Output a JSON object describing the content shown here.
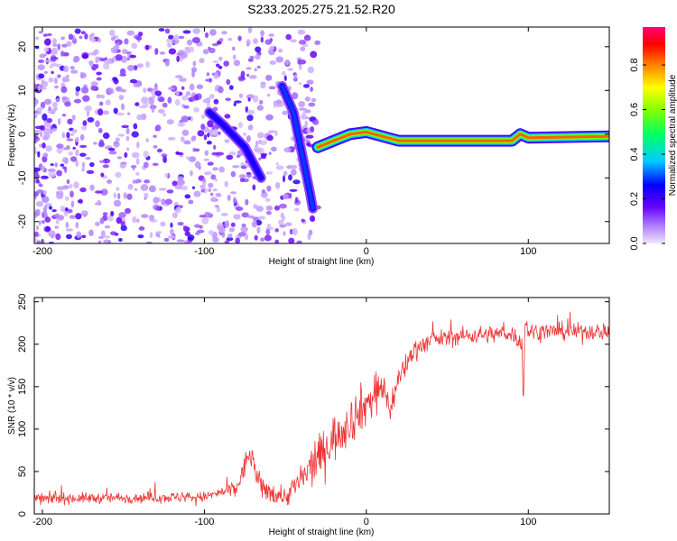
{
  "figure_title": "S233.2025.275.21.52.R20",
  "chart_data": [
    {
      "type": "heatmap",
      "title": "S233.2025.275.21.52.R20",
      "xlabel": "Height of straight line (km)",
      "ylabel": "Frequency (Hz)",
      "xlim": [
        -205,
        150
      ],
      "ylim": [
        -25,
        24.5
      ],
      "xticks": [
        -200,
        -100,
        0,
        100
      ],
      "yticks": [
        -20,
        -10,
        0,
        10,
        20
      ],
      "colorbar": {
        "label": "Normalized spectral amplitude",
        "range": [
          0,
          0.97
        ],
        "ticks": [
          0.0,
          0.2,
          0.4,
          0.6,
          0.8
        ],
        "colormap": "rainbow (white/lavender, purple, blue, cyan, green, yellow, orange, red, magenta)"
      },
      "features": [
        {
          "name": "scattered low-amplitude noise blobs",
          "x_range": [
            -205,
            -30
          ],
          "freq_range": [
            -25,
            24
          ],
          "amplitude": 0.1
        },
        {
          "name": "descending streak 1",
          "points": [
            [
              -97,
              5
            ],
            [
              -88,
              2
            ],
            [
              -75,
              -3
            ],
            [
              -65,
              -10
            ]
          ],
          "amplitude": 0.25
        },
        {
          "name": "descending streak 2",
          "points": [
            [
              -52,
              11
            ],
            [
              -45,
              5
            ],
            [
              -40,
              -4
            ],
            [
              -35,
              -13
            ],
            [
              -33,
              -17
            ]
          ],
          "amplitude": 0.3
        },
        {
          "name": "ridge near 0 Hz",
          "points": [
            [
              -30,
              -3
            ],
            [
              -10,
              0
            ],
            [
              0,
              0.5
            ],
            [
              20,
              -1.5
            ],
            [
              60,
              -1.5
            ],
            [
              90,
              -1.5
            ],
            [
              95,
              0
            ],
            [
              100,
              -0.8
            ],
            [
              150,
              -0.5
            ]
          ],
          "amplitude": 0.85
        }
      ]
    },
    {
      "type": "line",
      "title": "",
      "xlabel": "Height of straight line (km)",
      "ylabel": "SNR (10 * v/v)",
      "xlim": [
        -205,
        150
      ],
      "ylim": [
        0,
        255
      ],
      "xticks": [
        -200,
        -100,
        0,
        100
      ],
      "yticks": [
        0,
        50,
        100,
        150,
        200,
        250
      ],
      "color": "#ee3333",
      "trend": [
        [
          -205,
          18
        ],
        [
          -100,
          20
        ],
        [
          -80,
          30
        ],
        [
          -72,
          72
        ],
        [
          -65,
          30
        ],
        [
          -50,
          20
        ],
        [
          -38,
          45
        ],
        [
          -30,
          65
        ],
        [
          -20,
          90
        ],
        [
          -10,
          110
        ],
        [
          0,
          130
        ],
        [
          10,
          150
        ],
        [
          15,
          125
        ],
        [
          20,
          160
        ],
        [
          30,
          195
        ],
        [
          40,
          205
        ],
        [
          60,
          210
        ],
        [
          90,
          213
        ],
        [
          96,
          200
        ],
        [
          97,
          130
        ],
        [
          98,
          230
        ],
        [
          100,
          215
        ],
        [
          150,
          215
        ]
      ],
      "noise_amplitude": [
        [
          -205,
          8
        ],
        [
          -90,
          8
        ],
        [
          -75,
          18
        ],
        [
          -50,
          15
        ],
        [
          -35,
          30
        ],
        [
          -20,
          35
        ],
        [
          0,
          35
        ],
        [
          20,
          20
        ],
        [
          40,
          13
        ],
        [
          150,
          13
        ]
      ]
    }
  ]
}
